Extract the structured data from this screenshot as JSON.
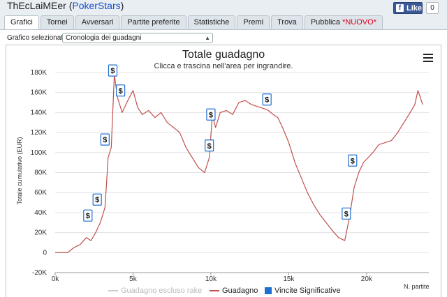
{
  "header": {
    "player_name": "ThEcLaiMEer",
    "site": "PokerStars",
    "like_label": "Like",
    "like_count": "0"
  },
  "tabs": [
    {
      "label": "Grafici",
      "active": true
    },
    {
      "label": "Tornei"
    },
    {
      "label": "Avversari"
    },
    {
      "label": "Partite preferite"
    },
    {
      "label": "Statistiche"
    },
    {
      "label": "Premi"
    },
    {
      "label": "Trova"
    },
    {
      "label": "Pubblica",
      "badge": "*NUOVO*"
    }
  ],
  "selector": {
    "label": "Grafico selezionato",
    "value": "Cronologia dei guadagni"
  },
  "icons": {
    "menu": "hamburger-menu-icon",
    "facebook": "facebook-f-icon",
    "select": "chevron-down-icon"
  },
  "colors": {
    "line": "#c0504d",
    "excluding_rake": "#cccccc",
    "marker": "#1f6fd1"
  },
  "chart_data": {
    "type": "line",
    "title": "Totale guadagno",
    "subtitle": "Clicca e trascina nell'area per ingrandire.",
    "xlabel": "N. partite",
    "ylabel": "Totale cumulativo (EUR)",
    "xlim": [
      0,
      24000
    ],
    "ylim": [
      -20000,
      180000
    ],
    "x_ticks": [
      "0k",
      "5k",
      "10k",
      "15k",
      "20k"
    ],
    "y_ticks": [
      "-20K",
      "0",
      "20K",
      "40K",
      "60K",
      "80K",
      "100K",
      "120K",
      "140K",
      "160K",
      "180K"
    ],
    "series": [
      {
        "name": "Guadagno",
        "x": [
          0,
          400,
          800,
          1200,
          1600,
          2000,
          2300,
          2600,
          2900,
          3200,
          3300,
          3400,
          3600,
          3800,
          4000,
          4300,
          4600,
          5000,
          5300,
          5600,
          6000,
          6400,
          6800,
          7200,
          7600,
          8000,
          8400,
          8800,
          9200,
          9600,
          9900,
          10100,
          10300,
          10600,
          11000,
          11400,
          11800,
          12200,
          12600,
          13000,
          13400,
          13700,
          14000,
          14300,
          14600,
          15000,
          15400,
          15800,
          16200,
          16600,
          17000,
          17400,
          17800,
          18200,
          18600,
          18900,
          19200,
          19500,
          19800,
          20100,
          20400,
          20800,
          21200,
          21600,
          22000,
          22400,
          22800,
          23100,
          23300,
          23600
        ],
        "values": [
          0,
          0,
          0,
          5000,
          8000,
          15000,
          12000,
          20000,
          30000,
          45000,
          70000,
          95000,
          105000,
          178000,
          155000,
          140000,
          150000,
          162000,
          145000,
          138000,
          142000,
          135000,
          140000,
          130000,
          125000,
          120000,
          105000,
          95000,
          85000,
          80000,
          95000,
          138000,
          125000,
          140000,
          142000,
          138000,
          150000,
          152000,
          148000,
          146000,
          144000,
          142000,
          138000,
          135000,
          125000,
          110000,
          90000,
          75000,
          60000,
          48000,
          38000,
          30000,
          22000,
          15000,
          12000,
          35000,
          65000,
          80000,
          90000,
          95000,
          100000,
          108000,
          110000,
          112000,
          120000,
          130000,
          140000,
          148000,
          162000,
          148000
        ]
      },
      {
        "name": "Guadagno escluso rake",
        "x": [],
        "values": []
      }
    ],
    "markers": {
      "name": "Vincite Significative",
      "label": "$",
      "x": [
        2100,
        2700,
        3200,
        3700,
        4200,
        9900,
        10000,
        13600,
        18700,
        19100
      ],
      "values": [
        37000,
        53000,
        113000,
        182000,
        162000,
        107000,
        138000,
        153000,
        39000,
        92000
      ]
    },
    "legend": [
      "Guadagno escluso rake",
      "Guadagno",
      "Vincite Significative"
    ],
    "legend_position": "bottom",
    "grid": true
  }
}
